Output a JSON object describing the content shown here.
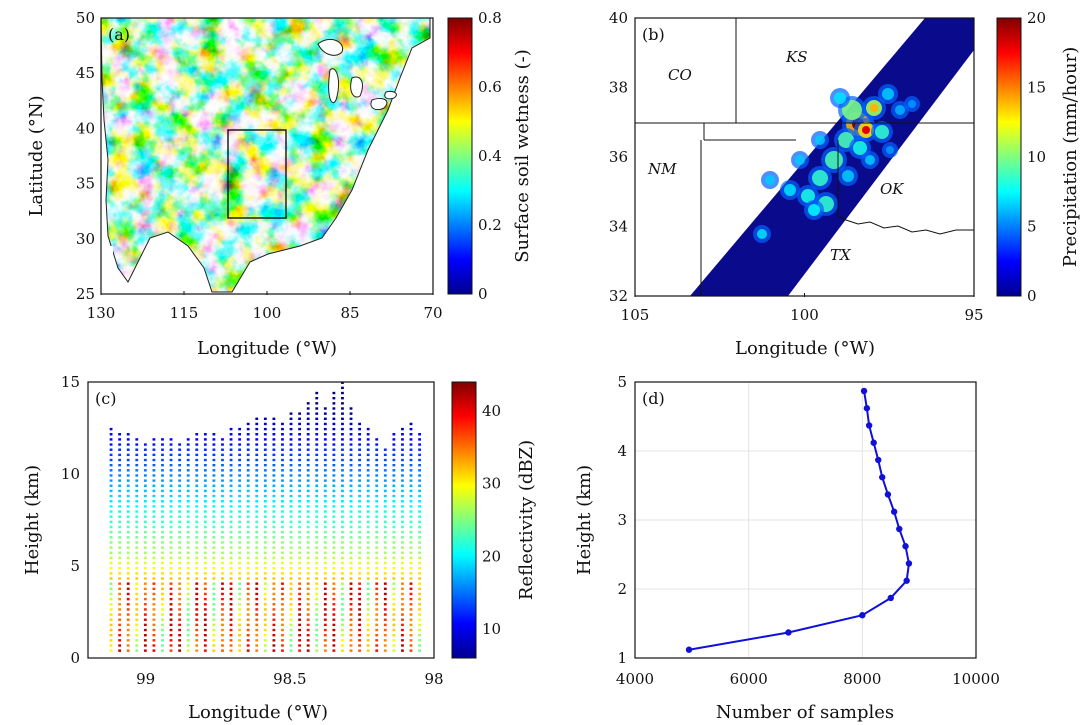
{
  "chart_data": [
    {
      "panel": "(a)",
      "type": "heatmap",
      "title": "",
      "xlabel": "Longitude (°W)",
      "ylabel": "Latitude (°N)",
      "xlim": [
        130,
        70
      ],
      "ylim": [
        25,
        50
      ],
      "xticks": [
        "130",
        "115",
        "100",
        "85",
        "70"
      ],
      "yticks": [
        "25",
        "30",
        "35",
        "40",
        "45",
        "50"
      ],
      "colorbar": {
        "label": "Surface soil wetness (-)",
        "min": 0,
        "max": 0.8,
        "ticks": [
          "0",
          "0.2",
          "0.4",
          "0.6",
          "0.8"
        ],
        "colormap": "jet"
      },
      "box": {
        "lon": [
          104,
          95
        ],
        "lat": [
          32,
          40
        ]
      }
    },
    {
      "panel": "(b)",
      "type": "heatmap",
      "title": "",
      "xlabel": "Longitude (°W)",
      "ylabel": "",
      "xlim": [
        105,
        95
      ],
      "ylim": [
        32,
        40
      ],
      "xticks": [
        "105",
        "100",
        "95"
      ],
      "yticks": [
        "32",
        "34",
        "36",
        "38",
        "40"
      ],
      "colorbar": {
        "label": "Precipitation (mm/hour)",
        "min": 0,
        "max": 20,
        "ticks": [
          "0",
          "5",
          "10",
          "15",
          "20"
        ],
        "colormap": "jet"
      },
      "state_labels": [
        "CO",
        "KS",
        "NM",
        "OK",
        "TX"
      ]
    },
    {
      "panel": "(c)",
      "type": "scatter",
      "title": "",
      "xlabel": "Longitude (°W)",
      "ylabel": "Height (km)",
      "xlim": [
        99.2,
        98
      ],
      "ylim": [
        0,
        15
      ],
      "xticks": [
        "99",
        "98.5",
        "98"
      ],
      "yticks": [
        "0",
        "5",
        "10",
        "15"
      ],
      "colorbar": {
        "label": "Reflectivity (dBZ)",
        "min": 6,
        "max": 44,
        "ticks": [
          "10",
          "20",
          "30",
          "40"
        ],
        "colormap": "jet"
      },
      "columns": {
        "count": 37,
        "lon_start": 99.12,
        "lon_end": 98.05,
        "tops_km": [
          12.5,
          12.3,
          12.2,
          12.0,
          11.8,
          12.1,
          11.9,
          12.0,
          11.7,
          11.9,
          12.2,
          12.3,
          12.4,
          12.1,
          12.6,
          12.5,
          12.8,
          13.0,
          13.2,
          13.0,
          12.9,
          13.3,
          13.5,
          13.9,
          14.6,
          13.6,
          14.5,
          15.0,
          13.8,
          12.9,
          12.6,
          12.1,
          11.5,
          12.3,
          12.5,
          12.8,
          12.4
        ]
      }
    },
    {
      "panel": "(d)",
      "type": "line",
      "title": "",
      "xlabel": "Number of samples",
      "ylabel": "Height (km)",
      "xlim": [
        4000,
        10000
      ],
      "ylim": [
        1,
        5
      ],
      "xticks": [
        "4000",
        "6000",
        "8000",
        "10000"
      ],
      "yticks": [
        "1",
        "2",
        "3",
        "4",
        "5"
      ],
      "grid": true,
      "series": [
        {
          "color": "#1010d8",
          "x": [
            4950,
            6700,
            8000,
            8500,
            8780,
            8820,
            8760,
            8650,
            8560,
            8450,
            8350,
            8280,
            8200,
            8120,
            8080,
            8030
          ],
          "y": [
            1.12,
            1.37,
            1.62,
            1.87,
            2.12,
            2.37,
            2.62,
            2.87,
            3.12,
            3.37,
            3.62,
            3.87,
            4.12,
            4.37,
            4.62,
            4.87
          ]
        }
      ]
    }
  ]
}
